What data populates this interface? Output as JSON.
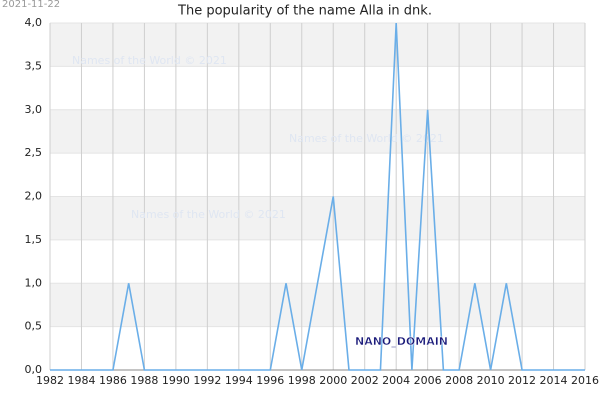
{
  "chart_data": {
    "type": "line",
    "title": "The popularity of the name Alla in dnk.",
    "x": [
      1982,
      1983,
      1984,
      1985,
      1986,
      1987,
      1988,
      1989,
      1990,
      1991,
      1992,
      1993,
      1994,
      1995,
      1996,
      1997,
      1998,
      1999,
      2000,
      2001,
      2002,
      2003,
      2004,
      2005,
      2006,
      2007,
      2008,
      2009,
      2010,
      2011,
      2012,
      2013,
      2014,
      2015,
      2016
    ],
    "series": [
      {
        "name": "Alla",
        "color": "#6aaee8",
        "values": [
          0,
          0,
          0,
          0,
          0,
          1,
          0,
          0,
          0,
          0,
          0,
          0,
          0,
          0,
          0,
          1,
          0,
          1,
          2,
          0,
          0,
          0,
          4,
          0,
          3,
          0,
          0,
          1,
          0,
          1,
          0,
          0,
          0,
          0,
          0
        ]
      }
    ],
    "xlim": [
      1982,
      2016
    ],
    "xticks": [
      1982,
      1984,
      1986,
      1988,
      1990,
      1992,
      1994,
      1996,
      1998,
      2000,
      2002,
      2004,
      2006,
      2008,
      2010,
      2012,
      2014,
      2016
    ],
    "ylim": [
      0,
      4
    ],
    "yticks": [
      {
        "value": 0,
        "label": "0,0"
      },
      {
        "value": 0.5,
        "label": "0,5"
      },
      {
        "value": 1,
        "label": "1,0"
      },
      {
        "value": 1.5,
        "label": "1,5"
      },
      {
        "value": 2,
        "label": "2,0"
      },
      {
        "value": 2.5,
        "label": "2,5"
      },
      {
        "value": 3,
        "label": "3,0"
      },
      {
        "value": 3.5,
        "label": "3,5"
      },
      {
        "value": 4,
        "label": "4,0"
      }
    ],
    "grid": true,
    "bands": true,
    "annotations": [
      "Names of the World © 2021",
      "Names of the World © 2021",
      "Names of the World © 2021",
      "2021-11-22",
      "NANO_DOMAIN"
    ]
  }
}
